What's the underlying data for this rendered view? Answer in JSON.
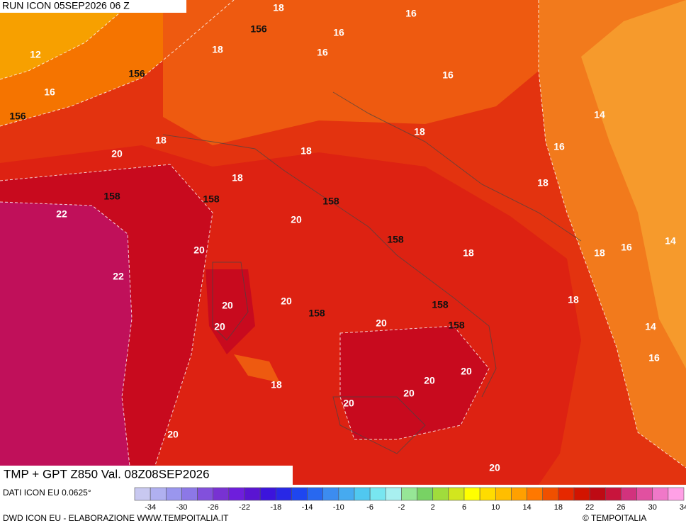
{
  "header": {
    "run": "RUN ICON 05SEP2026 06 Z"
  },
  "map": {
    "contour_labels": [
      "18",
      "16",
      "156",
      "16",
      "12",
      "18",
      "16",
      "156",
      "16",
      "16",
      "156",
      "14",
      "18",
      "18",
      "16",
      "18",
      "20",
      "18",
      "18",
      "158",
      "158",
      "158",
      "22",
      "20",
      "158",
      "18",
      "16",
      "14",
      "18",
      "20",
      "22",
      "20",
      "18",
      "20",
      "158",
      "158",
      "20",
      "14",
      "20",
      "158",
      "16",
      "20",
      "18",
      "20",
      "20",
      "20",
      "20",
      "20"
    ]
  },
  "title": "TMP + GPT Z850 Val. 08Z08SEP2026",
  "legend": {
    "source": "DATI ICON EU 0.0625°",
    "colors": [
      "#c8c8f0",
      "#b0b0f0",
      "#9a96ee",
      "#8c78e6",
      "#8250dc",
      "#7832d2",
      "#6e1edc",
      "#5a14d2",
      "#3c14dc",
      "#2828e6",
      "#1e46f0",
      "#2868f0",
      "#3c8cf0",
      "#46aaf0",
      "#50c8f0",
      "#78e6f0",
      "#a8f0f0",
      "#96e696",
      "#78d264",
      "#a0dc3c",
      "#d2e61e",
      "#ffff00",
      "#ffdc00",
      "#ffbe00",
      "#ffa000",
      "#ff7800",
      "#f05000",
      "#e62800",
      "#d21400",
      "#be0a14",
      "#c8143c",
      "#d2327d",
      "#e150a0",
      "#f078c8",
      "#ffa0e6"
    ],
    "ticks": [
      "-34",
      "-30",
      "-26",
      "-22",
      "-18",
      "-14",
      "-10",
      "-6",
      "-2",
      "2",
      "6",
      "10",
      "14",
      "18",
      "22",
      "26",
      "30",
      "34"
    ]
  },
  "footer": {
    "credit": "DWD ICON EU - ELABORAZIONE WWW.TEMPOITALIA.IT",
    "copyright": "© TEMPOITALIA"
  }
}
